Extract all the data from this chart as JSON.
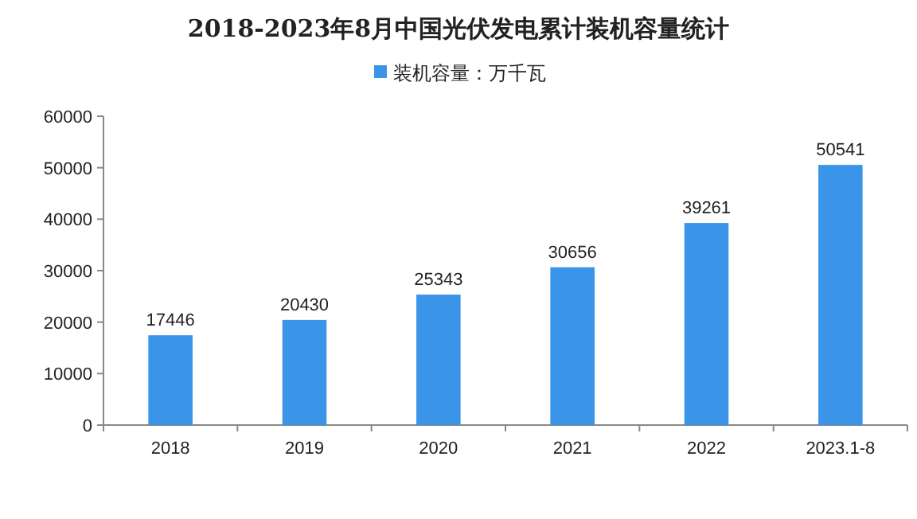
{
  "chart_data": {
    "type": "bar",
    "title": "2018-2023年8月中国光伏发电累计装机容量统计",
    "categories": [
      "2018",
      "2019",
      "2020",
      "2021",
      "2022",
      "2023.1-8"
    ],
    "series": [
      {
        "name": "装机容量：万千瓦",
        "color": "#3a94e8",
        "values": [
          17446,
          20430,
          25343,
          30656,
          39261,
          50541
        ]
      }
    ],
    "ylim": [
      0,
      60000
    ],
    "yticks": [
      0,
      10000,
      20000,
      30000,
      40000,
      50000,
      60000
    ],
    "data_labels": true,
    "legend": "top",
    "grid": false
  }
}
